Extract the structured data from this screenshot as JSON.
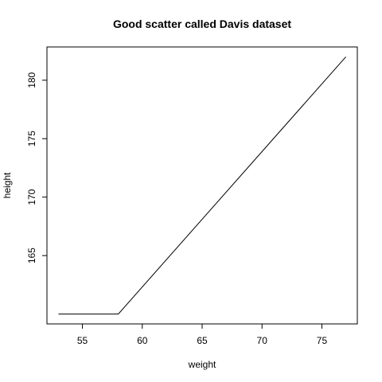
{
  "chart_data": {
    "type": "line",
    "title": "Good scatter called Davis dataset",
    "xlabel": "weight",
    "ylabel": "height",
    "xlim": [
      52.04,
      77.96
    ],
    "ylim": [
      159.156,
      182.844
    ],
    "xticks": [
      55,
      60,
      65,
      70,
      75
    ],
    "yticks": [
      165,
      170,
      175,
      180
    ],
    "xtick_labels": [
      "55",
      "60",
      "65",
      "70",
      "75"
    ],
    "ytick_labels": [
      "165",
      "170",
      "175",
      "180"
    ],
    "grid": false,
    "legend": "none",
    "series": [
      {
        "x": [
          53,
          58,
          77
        ],
        "y": [
          160,
          160,
          182
        ]
      }
    ],
    "colors": {
      "line": "#000000",
      "axes": "#000000",
      "background": "#ffffff"
    }
  }
}
